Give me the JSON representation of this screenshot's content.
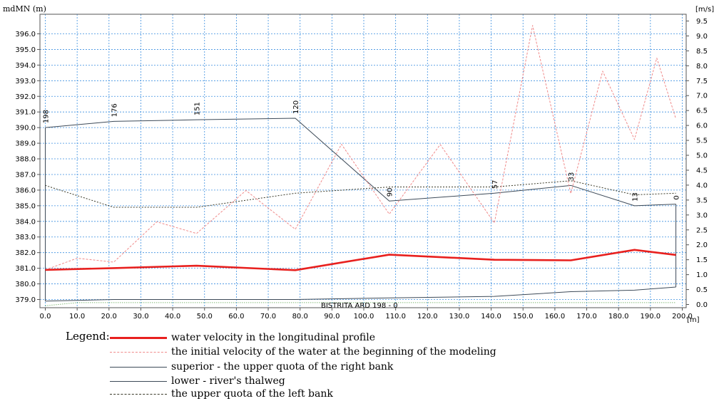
{
  "chart_data": {
    "type": "line",
    "ylabel_left": "mdMN (m)",
    "ylabel_right": "[m/s]",
    "xlabel": "[m]",
    "xlim": [
      -5,
      200
    ],
    "ylim_left": [
      378.3,
      397.0
    ],
    "ylim_right": [
      -0.2,
      9.5
    ],
    "x_ticks": [
      "0.0",
      "10.0",
      "20.0",
      "30.0",
      "40.0",
      "50.0",
      "60.0",
      "70.0",
      "80.0",
      "90.0",
      "100.0",
      "110.0",
      "120.0",
      "130.0",
      "140.0",
      "150.0",
      "160.0",
      "170.0",
      "180.0",
      "190.0",
      "200.0"
    ],
    "y_left_ticks": [
      "379.0",
      "380.0",
      "381.0",
      "382.0",
      "383.0",
      "384.0",
      "385.0",
      "386.0",
      "387.0",
      "388.0",
      "389.0",
      "390.0",
      "391.0",
      "392.0",
      "393.0",
      "394.0",
      "395.0",
      "396.0"
    ],
    "y_right_ticks": [
      "0.0",
      "0.5",
      "1.0",
      "1.5",
      "2.0",
      "2.5",
      "3.0",
      "3.5",
      "4.0",
      "4.5",
      "5.0",
      "5.5",
      "6.0",
      "6.5",
      "7.0",
      "7.5",
      "8.0",
      "8.5",
      "9.0",
      "9.5"
    ],
    "grid": true,
    "profile_name": "BISTRITA ARD  198 - 0",
    "stations": [
      {
        "label": "198",
        "x": 0.0,
        "y": 390.0
      },
      {
        "label": "176",
        "x": 21.5,
        "y": 390.4
      },
      {
        "label": "151",
        "x": 47.5,
        "y": 390.5
      },
      {
        "label": "120",
        "x": 78.5,
        "y": 390.6
      },
      {
        "label": "90",
        "x": 108.0,
        "y": 385.3
      },
      {
        "label": "57",
        "x": 141.0,
        "y": 385.8
      },
      {
        "label": "33",
        "x": 165.0,
        "y": 386.3
      },
      {
        "label": "13",
        "x": 185.0,
        "y": 385.0
      },
      {
        "label": "0",
        "x": 198.0,
        "y": 385.1
      }
    ],
    "series": [
      {
        "name": "water velocity in the longitudinal profile",
        "axis": "right",
        "color": "#e8201e",
        "x": [
          0.0,
          21.5,
          47.5,
          78.5,
          108.0,
          141.0,
          165.0,
          185.0,
          198.0
        ],
        "y": [
          1.16,
          1.22,
          1.3,
          1.15,
          1.67,
          1.5,
          1.48,
          1.83,
          1.66
        ]
      },
      {
        "name": "the initial velocity of the water at the beginning of the modeling",
        "axis": "right",
        "color": "#f08a8a",
        "x": [
          0.0,
          10.0,
          21.5,
          35.0,
          47.5,
          63.0,
          78.5,
          93.0,
          108.0,
          124.0,
          141.0,
          153.0,
          165.0,
          175.0,
          185.0,
          192.0,
          198.0
        ],
        "y": [
          1.16,
          1.55,
          1.42,
          2.77,
          2.38,
          3.82,
          2.52,
          5.37,
          3.03,
          5.36,
          2.73,
          9.35,
          3.72,
          7.82,
          5.53,
          8.26,
          6.22
        ]
      },
      {
        "name": "superior - the upper quota of the right bank",
        "axis": "left",
        "color": "#3d4a58",
        "x": [
          0.0,
          21.5,
          47.5,
          78.5,
          108.0,
          141.0,
          165.0,
          185.0,
          198.0
        ],
        "y": [
          390.0,
          390.4,
          390.5,
          390.6,
          385.3,
          385.8,
          386.3,
          385.0,
          385.1
        ]
      },
      {
        "name": "lower - river's thalweg",
        "axis": "left",
        "color": "#3d4a58",
        "x": [
          0.0,
          21.5,
          47.5,
          78.5,
          108.0,
          141.0,
          165.0,
          185.0,
          198.0
        ],
        "y": [
          378.9,
          379.0,
          379.0,
          379.0,
          379.1,
          379.2,
          379.5,
          379.6,
          379.8
        ]
      },
      {
        "name": "the upper quota of the left bank",
        "axis": "left",
        "color": "#3a3a28",
        "x": [
          0.0,
          21.5,
          47.5,
          78.5,
          108.0,
          141.0,
          165.0,
          185.0,
          198.0
        ],
        "y": [
          386.3,
          384.9,
          384.9,
          385.8,
          386.2,
          386.2,
          386.6,
          385.7,
          385.8
        ]
      }
    ],
    "baseline": {
      "axis": "left",
      "color": "#4a9a3a",
      "x": [
        0.0,
        10.0,
        198.0
      ],
      "y": [
        378.6,
        378.8,
        378.8
      ]
    }
  },
  "legend": {
    "title": "Legend:",
    "items": [
      {
        "label": "water velocity in the longitudinal profile",
        "color": "#e8201e",
        "style": "thick"
      },
      {
        "label": "the initial velocity of the water at the beginning of the modeling",
        "color": "#f08a8a",
        "style": "dashed"
      },
      {
        "label": "superior - the upper quota of the right bank",
        "color": "#3d4a58",
        "style": "solid"
      },
      {
        "label": "lower - river's thalweg",
        "color": "#3d4a58",
        "style": "solid"
      },
      {
        "label": "the upper quota of the left bank",
        "color": "#3a3a28",
        "style": "dotted"
      }
    ]
  }
}
